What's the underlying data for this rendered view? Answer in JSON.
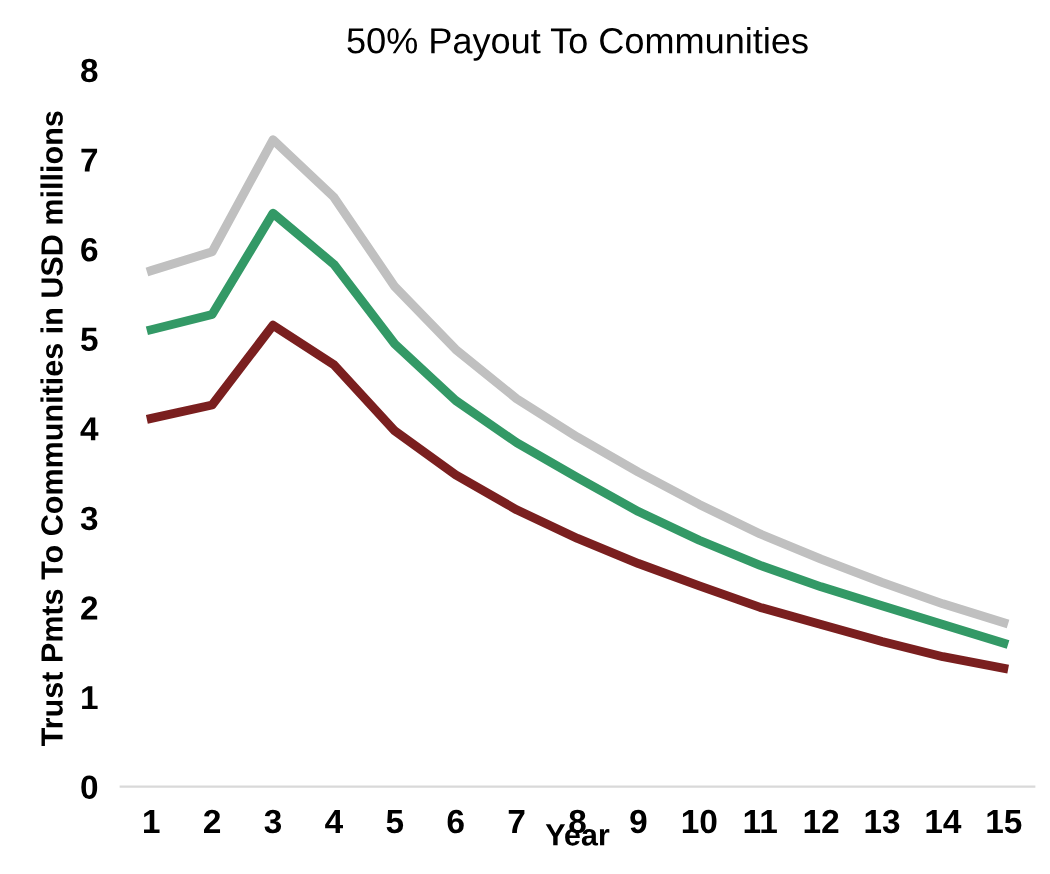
{
  "chart_data": {
    "type": "line",
    "title": "50% Payout To Communities",
    "xlabel": "Year",
    "ylabel": "Trust Pmts To Communities in USD millions",
    "categories": [
      "1",
      "2",
      "3",
      "4",
      "5",
      "6",
      "7",
      "8",
      "9",
      "10",
      "11",
      "12",
      "13",
      "14",
      "15"
    ],
    "series": [
      {
        "color": "#c0c0c0",
        "values": [
          5.76,
          5.97,
          7.22,
          6.58,
          5.58,
          4.88,
          4.33,
          3.9,
          3.51,
          3.15,
          2.82,
          2.54,
          2.28,
          2.04,
          1.83
        ]
      },
      {
        "color": "#339966",
        "values": [
          5.1,
          5.27,
          6.4,
          5.83,
          4.94,
          4.31,
          3.84,
          3.45,
          3.07,
          2.75,
          2.47,
          2.23,
          2.02,
          1.81,
          1.6
        ]
      },
      {
        "color": "#7a1f1f",
        "values": [
          4.11,
          4.26,
          5.15,
          4.71,
          3.97,
          3.48,
          3.09,
          2.77,
          2.49,
          2.24,
          2.0,
          1.81,
          1.62,
          1.45,
          1.32
        ]
      }
    ],
    "ylim": [
      0,
      8
    ],
    "yticks": [
      0,
      1,
      2,
      3,
      4,
      5,
      6,
      7,
      8
    ],
    "grid": false,
    "legend": false,
    "marker": "none",
    "line_style": "solid"
  }
}
